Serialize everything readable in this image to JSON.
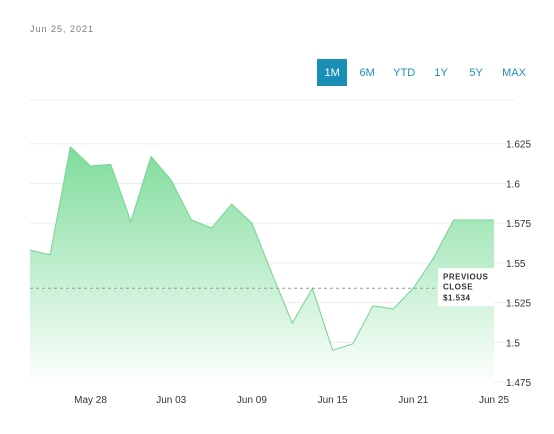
{
  "header": {
    "date": "Jun 25, 2021"
  },
  "range_buttons": [
    {
      "label": "1M",
      "active": true
    },
    {
      "label": "6M",
      "active": false
    },
    {
      "label": "YTD",
      "active": false
    },
    {
      "label": "1Y",
      "active": false
    },
    {
      "label": "5Y",
      "active": false
    },
    {
      "label": "MAX",
      "active": false
    }
  ],
  "colors": {
    "accent": "#1a8fb6",
    "area_top": "#7fdc9b",
    "area_bottom": "#ffffff",
    "grid": "#ececec"
  },
  "chart_data": {
    "type": "area",
    "x": [
      "May 25",
      "May 26",
      "May 27",
      "May 28",
      "May 31",
      "Jun 01",
      "Jun 02",
      "Jun 03",
      "Jun 04",
      "Jun 07",
      "Jun 08",
      "Jun 09",
      "Jun 10",
      "Jun 11",
      "Jun 14",
      "Jun 15",
      "Jun 16",
      "Jun 17",
      "Jun 18",
      "Jun 21",
      "Jun 22",
      "Jun 23",
      "Jun 24",
      "Jun 25"
    ],
    "values": [
      1.558,
      1.555,
      1.623,
      1.611,
      1.612,
      1.576,
      1.617,
      1.602,
      1.577,
      1.572,
      1.587,
      1.575,
      1.543,
      1.512,
      1.534,
      1.495,
      1.499,
      1.523,
      1.521,
      1.534,
      1.553,
      1.577,
      1.577,
      1.577
    ],
    "x_tick_labels": [
      "May 28",
      "Jun 03",
      "Jun 09",
      "Jun 15",
      "Jun 21",
      "Jun 25"
    ],
    "x_tick_indices": [
      3,
      7,
      11,
      15,
      19,
      23
    ],
    "y_ticks": [
      "1.625",
      "1.6",
      "1.575",
      "1.55",
      "1.525",
      "1.5",
      "1.475"
    ],
    "y_tick_values": [
      1.625,
      1.6,
      1.575,
      1.55,
      1.525,
      1.5,
      1.475
    ],
    "ylim": [
      1.4725,
      1.6525
    ],
    "previous_close": 1.534,
    "previous_close_label_line1": "PREVIOUS",
    "previous_close_label_line2": "CLOSE",
    "previous_close_label_value": "$1.534",
    "grid": true
  }
}
